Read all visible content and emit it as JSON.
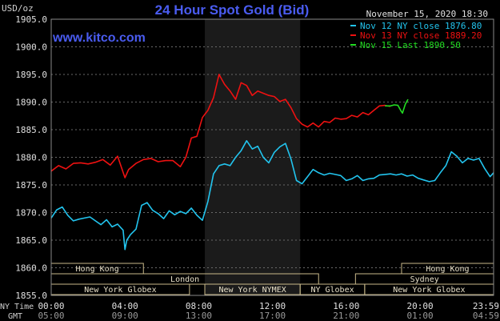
{
  "chart_data": {
    "type": "line",
    "title": "24 Hour Spot Gold (Bid)",
    "website": "www.kitco.com",
    "timestamp": "November 15, 2020 18:30",
    "ylabel": "USD/oz",
    "ylim": [
      1855,
      1905
    ],
    "yticks": [
      "1905.0",
      "1900.0",
      "1895.0",
      "1890.0",
      "1885.0",
      "1880.0",
      "1875.0",
      "1870.0",
      "1865.0",
      "1860.0",
      "1855.0"
    ],
    "xlabel_rows": [
      "NY Time",
      "GMT"
    ],
    "xticks_ny": [
      "00:00",
      "04:00",
      "08:00",
      "12:00",
      "16:00",
      "20:00",
      "23:59"
    ],
    "xticks_gmt": [
      "05:00",
      "09:00",
      "13:00",
      "17:00",
      "21:00",
      "01:00",
      "04:59"
    ],
    "highlight_hours": [
      8.33,
      13.5
    ],
    "legend_position": "top-right",
    "series": [
      {
        "name": "Nov 12 NY close 1876.80",
        "color": "#22c4ee",
        "x": [
          0,
          0.3,
          0.6,
          0.9,
          1.2,
          1.5,
          1.8,
          2.1,
          2.4,
          2.7,
          3.0,
          3.3,
          3.6,
          3.9,
          4.0,
          4.1,
          4.3,
          4.6,
          4.9,
          5.2,
          5.5,
          5.8,
          6.1,
          6.4,
          6.7,
          7.0,
          7.3,
          7.6,
          7.9,
          8.2,
          8.5,
          8.8,
          9.1,
          9.4,
          9.7,
          10.0,
          10.3,
          10.6,
          10.9,
          11.2,
          11.5,
          11.8,
          12.1,
          12.4,
          12.7,
          13.0,
          13.3,
          13.6,
          13.9,
          14.2,
          14.5,
          14.8,
          15.1,
          15.4,
          15.7,
          16.0,
          16.3,
          16.6,
          16.9,
          17.2,
          17.5,
          17.8,
          18.1,
          18.4,
          18.7,
          19.0,
          19.3,
          19.6,
          19.9,
          20.2,
          20.5,
          20.8,
          21.1,
          21.4,
          21.7,
          22.0,
          22.3,
          22.6,
          22.9,
          23.2,
          23.5,
          23.8,
          23.99
        ],
        "values": [
          1869.0,
          1870.5,
          1871.0,
          1869.5,
          1868.5,
          1868.8,
          1869.0,
          1869.2,
          1868.5,
          1867.8,
          1868.7,
          1867.4,
          1867.9,
          1866.8,
          1863.3,
          1865.0,
          1866.0,
          1867.0,
          1871.3,
          1871.8,
          1870.4,
          1869.8,
          1868.9,
          1870.3,
          1869.6,
          1870.2,
          1869.8,
          1870.8,
          1869.5,
          1868.6,
          1872.0,
          1877.0,
          1878.5,
          1878.8,
          1878.5,
          1880.0,
          1881.2,
          1883.0,
          1881.5,
          1882.0,
          1880.0,
          1879.0,
          1880.9,
          1881.9,
          1882.5,
          1879.7,
          1875.8,
          1875.2,
          1876.5,
          1877.8,
          1877.2,
          1876.8,
          1877.1,
          1876.9,
          1876.7,
          1875.8,
          1876.1,
          1876.7,
          1875.8,
          1876.1,
          1876.2,
          1876.8,
          1876.9,
          1877.0,
          1876.8,
          1877.0,
          1876.6,
          1876.8,
          1876.2,
          1875.9,
          1875.6,
          1875.8,
          1877.2,
          1878.5,
          1881.0,
          1880.2,
          1879.0,
          1879.8,
          1879.5,
          1879.8,
          1878.0,
          1876.5,
          1877.2
        ]
      },
      {
        "name": "Nov 13 NY close 1889.20",
        "color": "#ee1111",
        "x": [
          0,
          0.4,
          0.8,
          1.2,
          1.6,
          2.0,
          2.4,
          2.8,
          3.2,
          3.6,
          4.0,
          4.2,
          4.6,
          5.0,
          5.4,
          5.8,
          6.2,
          6.6,
          7.0,
          7.3,
          7.6,
          7.9,
          8.2,
          8.5,
          8.8,
          9.1,
          9.4,
          9.7,
          10.0,
          10.3,
          10.6,
          10.9,
          11.2,
          11.5,
          11.8,
          12.1,
          12.4,
          12.7,
          13.0,
          13.3,
          13.6,
          13.9,
          14.2,
          14.5,
          14.8,
          15.1,
          15.4,
          15.7,
          16.0,
          16.3,
          16.6,
          16.9,
          17.2,
          17.5,
          17.8,
          18.1,
          18.4
        ],
        "values": [
          1877.5,
          1878.5,
          1877.9,
          1878.9,
          1879.0,
          1878.8,
          1879.1,
          1879.6,
          1878.6,
          1880.2,
          1876.3,
          1877.8,
          1878.9,
          1879.6,
          1879.8,
          1879.2,
          1879.4,
          1879.4,
          1878.3,
          1880.0,
          1883.5,
          1883.8,
          1887.2,
          1888.5,
          1890.8,
          1895.0,
          1893.2,
          1892.0,
          1890.5,
          1893.5,
          1893.0,
          1891.2,
          1892.0,
          1891.6,
          1891.2,
          1891.0,
          1890.1,
          1890.5,
          1889.0,
          1887.0,
          1886.0,
          1885.5,
          1886.2,
          1885.5,
          1886.5,
          1886.3,
          1887.1,
          1886.9,
          1887.0,
          1887.6,
          1887.3,
          1888.1,
          1887.7,
          1888.5,
          1889.3,
          1889.4,
          1889.2
        ]
      },
      {
        "name": "Nov 15 Last 1890.50",
        "color": "#22dd22",
        "x": [
          18.1,
          18.4,
          18.6,
          18.8,
          18.95,
          19.05,
          19.2,
          19.35
        ],
        "values": [
          1889.3,
          1889.3,
          1889.5,
          1889.4,
          1888.5,
          1888.0,
          1889.6,
          1890.5
        ]
      }
    ],
    "sessions": [
      {
        "label": "Hong Kong",
        "row": 0,
        "start": 0.0,
        "end": 5.0
      },
      {
        "label": "Hong Kong",
        "row": 0,
        "start": 19.0,
        "end": 23.99
      },
      {
        "label": "London",
        "row": 1,
        "start": 0.0,
        "end": 14.5
      },
      {
        "label": "Sydney",
        "row": 1,
        "start": 16.5,
        "end": 23.99
      },
      {
        "label": "New York Globex",
        "row": 2,
        "start": 0.0,
        "end": 7.5
      },
      {
        "label": "New York NYMEX",
        "row": 2,
        "start": 8.33,
        "end": 13.5
      },
      {
        "label": "NY Globex",
        "row": 2,
        "start": 13.5,
        "end": 17.0
      },
      {
        "label": "New York Globex",
        "row": 2,
        "start": 17.0,
        "end": 23.99
      }
    ]
  }
}
